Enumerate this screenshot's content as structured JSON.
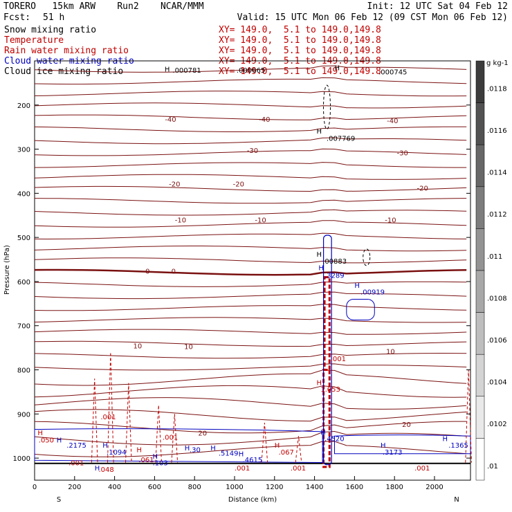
{
  "header": {
    "model": "TORERO   15km ARW    Run2    NCAR/MMM",
    "init": "Init: 12 UTC Sat 04 Feb 12",
    "fcst_label": "Fcst:",
    "fcst_value": "51 h",
    "valid": "Valid: 15 UTC Mon 06 Feb 12 (09 CST Mon 06 Feb 12)"
  },
  "fields": [
    {
      "name": "Snow mixing ratio",
      "xy": "XY= 149.0,  5.1 to 149.0,149.8",
      "color": "#000000"
    },
    {
      "name": "Temperature",
      "xy": "XY= 149.0,  5.1 to 149.0,149.8",
      "color": "#c00000"
    },
    {
      "name": "Rain water mixing ratio",
      "xy": "XY= 149.0,  5.1 to 149.0,149.8",
      "color": "#c00000"
    },
    {
      "name": "Cloud water mixing ratio",
      "xy": "XY= 149.0,  5.1 to 149.0,149.8",
      "color": "#0000c0"
    },
    {
      "name": "Cloud ice mixing ratio",
      "xy": "XY= 149.0,  5.1 to 149.0,149.8",
      "color": "#000000"
    }
  ],
  "chart_data": {
    "type": "cross-section",
    "xlabel": "Distance (km)",
    "ylabel": "Pressure (hPa)",
    "x_ticks": [
      0,
      200,
      400,
      600,
      800,
      1000,
      1200,
      1400,
      1600,
      1800,
      2000
    ],
    "y_ticks": [
      200,
      300,
      400,
      500,
      600,
      700,
      800,
      900,
      1000
    ],
    "xlim": [
      0,
      2180
    ],
    "ylim": [
      1050,
      100
    ],
    "x_end_labels": {
      "left": "S",
      "right": "N"
    },
    "colorbar": {
      "unit": "g kg-1",
      "labels": [
        ".0118",
        ".0116",
        ".0114",
        ".0112",
        ".011",
        ".0108",
        ".0106",
        ".0104",
        ".0102",
        ".01"
      ]
    },
    "temperature_labels": [
      {
        "text": "-40",
        "x": 680,
        "p": 232
      },
      {
        "text": "-40",
        "x": 1150,
        "p": 232
      },
      {
        "text": "-40",
        "x": 1790,
        "p": 235
      },
      {
        "text": "-30",
        "x": 1090,
        "p": 302
      },
      {
        "text": "-30",
        "x": 1840,
        "p": 308
      },
      {
        "text": "-20",
        "x": 700,
        "p": 378
      },
      {
        "text": "-20",
        "x": 1020,
        "p": 378
      },
      {
        "text": "-20",
        "x": 1940,
        "p": 388
      },
      {
        "text": "-10",
        "x": 730,
        "p": 460
      },
      {
        "text": "-10",
        "x": 1130,
        "p": 460
      },
      {
        "text": "-10",
        "x": 1780,
        "p": 460
      },
      {
        "text": "0",
        "x": 565,
        "p": 576
      },
      {
        "text": "0",
        "x": 695,
        "p": 576
      },
      {
        "text": "10",
        "x": 515,
        "p": 745
      },
      {
        "text": "10",
        "x": 770,
        "p": 747
      },
      {
        "text": "10",
        "x": 1780,
        "p": 758
      },
      {
        "text": "20",
        "x": 840,
        "p": 943
      },
      {
        "text": "20",
        "x": 1860,
        "p": 923
      }
    ],
    "value_labels": [
      {
        "text": "H",
        "x": 650,
        "p": 118,
        "color": "#000000"
      },
      {
        "text": ".000781",
        "x": 690,
        "p": 120,
        "color": "#000000"
      },
      {
        "text": ".000665",
        "x": 1010,
        "p": 120,
        "color": "#000000"
      },
      {
        "text": "H",
        "x": 1500,
        "p": 115,
        "color": "#000000"
      },
      {
        "text": ".000745",
        "x": 1720,
        "p": 124,
        "color": "#000000"
      },
      {
        "text": "H",
        "x": 1410,
        "p": 258,
        "color": "#000000"
      },
      {
        "text": ".007769",
        "x": 1460,
        "p": 275,
        "color": "#000000"
      },
      {
        "text": "H",
        "x": 1410,
        "p": 537,
        "color": "#000000"
      },
      {
        "text": ".00883",
        "x": 1440,
        "p": 553,
        "color": "#000000"
      },
      {
        "text": "H",
        "x": 1420,
        "p": 568,
        "color": "#0000c0"
      },
      {
        "text": ".3289",
        "x": 1450,
        "p": 585,
        "color": "#0000c0"
      },
      {
        "text": "H",
        "x": 1600,
        "p": 608,
        "color": "#0000c0"
      },
      {
        "text": ".00919",
        "x": 1630,
        "p": 623,
        "color": "#0000c0"
      },
      {
        "text": ".001",
        "x": 1480,
        "p": 774,
        "color": "#c00000"
      },
      {
        "text": "H",
        "x": 1410,
        "p": 828,
        "color": "#c00000"
      },
      {
        "text": "1.053",
        "x": 1430,
        "p": 843,
        "color": "#c00000"
      },
      {
        "text": ".001",
        "x": 330,
        "p": 906,
        "color": "#c00000"
      },
      {
        "text": ".001",
        "x": 640,
        "p": 952,
        "color": "#c00000"
      },
      {
        "text": "H",
        "x": 15,
        "p": 942,
        "color": "#c00000"
      },
      {
        "text": ".050",
        "x": 20,
        "p": 958,
        "color": "#c00000"
      },
      {
        "text": "H",
        "x": 110,
        "p": 958,
        "color": "#0000c0"
      },
      {
        "text": ".2175",
        "x": 160,
        "p": 970,
        "color": "#0000c0"
      },
      {
        "text": "H",
        "x": 340,
        "p": 970,
        "color": "#0000c0"
      },
      {
        "text": ".1094",
        "x": 360,
        "p": 986,
        "color": "#0000c0"
      },
      {
        "text": "H",
        "x": 510,
        "p": 980,
        "color": "#c00000"
      },
      {
        "text": ".061",
        "x": 520,
        "p": 1003,
        "color": "#c00000"
      },
      {
        "text": "H",
        "x": 590,
        "p": 995,
        "color": "#0000c0"
      },
      {
        "text": ".103",
        "x": 590,
        "p": 1010,
        "color": "#0000c0"
      },
      {
        "text": ".001",
        "x": 170,
        "p": 1010,
        "color": "#c00000"
      },
      {
        "text": "H",
        "x": 300,
        "p": 1022,
        "color": "#0000c0"
      },
      {
        "text": ".048",
        "x": 320,
        "p": 1025,
        "color": "#c00000"
      },
      {
        "text": "H",
        "x": 750,
        "p": 976,
        "color": "#0000c0"
      },
      {
        "text": ".30",
        "x": 775,
        "p": 980,
        "color": "#0000c0"
      },
      {
        "text": "H",
        "x": 880,
        "p": 976,
        "color": "#0000c0"
      },
      {
        "text": ".5149",
        "x": 920,
        "p": 988,
        "color": "#0000c0"
      },
      {
        "text": "H",
        "x": 1020,
        "p": 990,
        "color": "#0000c0"
      },
      {
        "text": ".4615",
        "x": 1040,
        "p": 1003,
        "color": "#0000c0"
      },
      {
        "text": "H",
        "x": 1200,
        "p": 970,
        "color": "#c00000"
      },
      {
        "text": ".067",
        "x": 1220,
        "p": 986,
        "color": "#c00000"
      },
      {
        "text": ".001",
        "x": 1000,
        "p": 1022,
        "color": "#c00000"
      },
      {
        "text": ".001",
        "x": 1280,
        "p": 1022,
        "color": "#c00000"
      },
      {
        "text": "H",
        "x": 1430,
        "p": 940,
        "color": "#0000c0"
      },
      {
        "text": ".4520",
        "x": 1450,
        "p": 955,
        "color": "#0000c0"
      },
      {
        "text": "H",
        "x": 1730,
        "p": 970,
        "color": "#0000c0"
      },
      {
        "text": ".3173",
        "x": 1740,
        "p": 986,
        "color": "#0000c0"
      },
      {
        "text": "H",
        "x": 2040,
        "p": 955,
        "color": "#0000c0"
      },
      {
        "text": ".1365",
        "x": 2070,
        "p": 970,
        "color": "#0000c0"
      },
      {
        "text": ".001",
        "x": 1900,
        "p": 1022,
        "color": "#c00000"
      }
    ]
  }
}
